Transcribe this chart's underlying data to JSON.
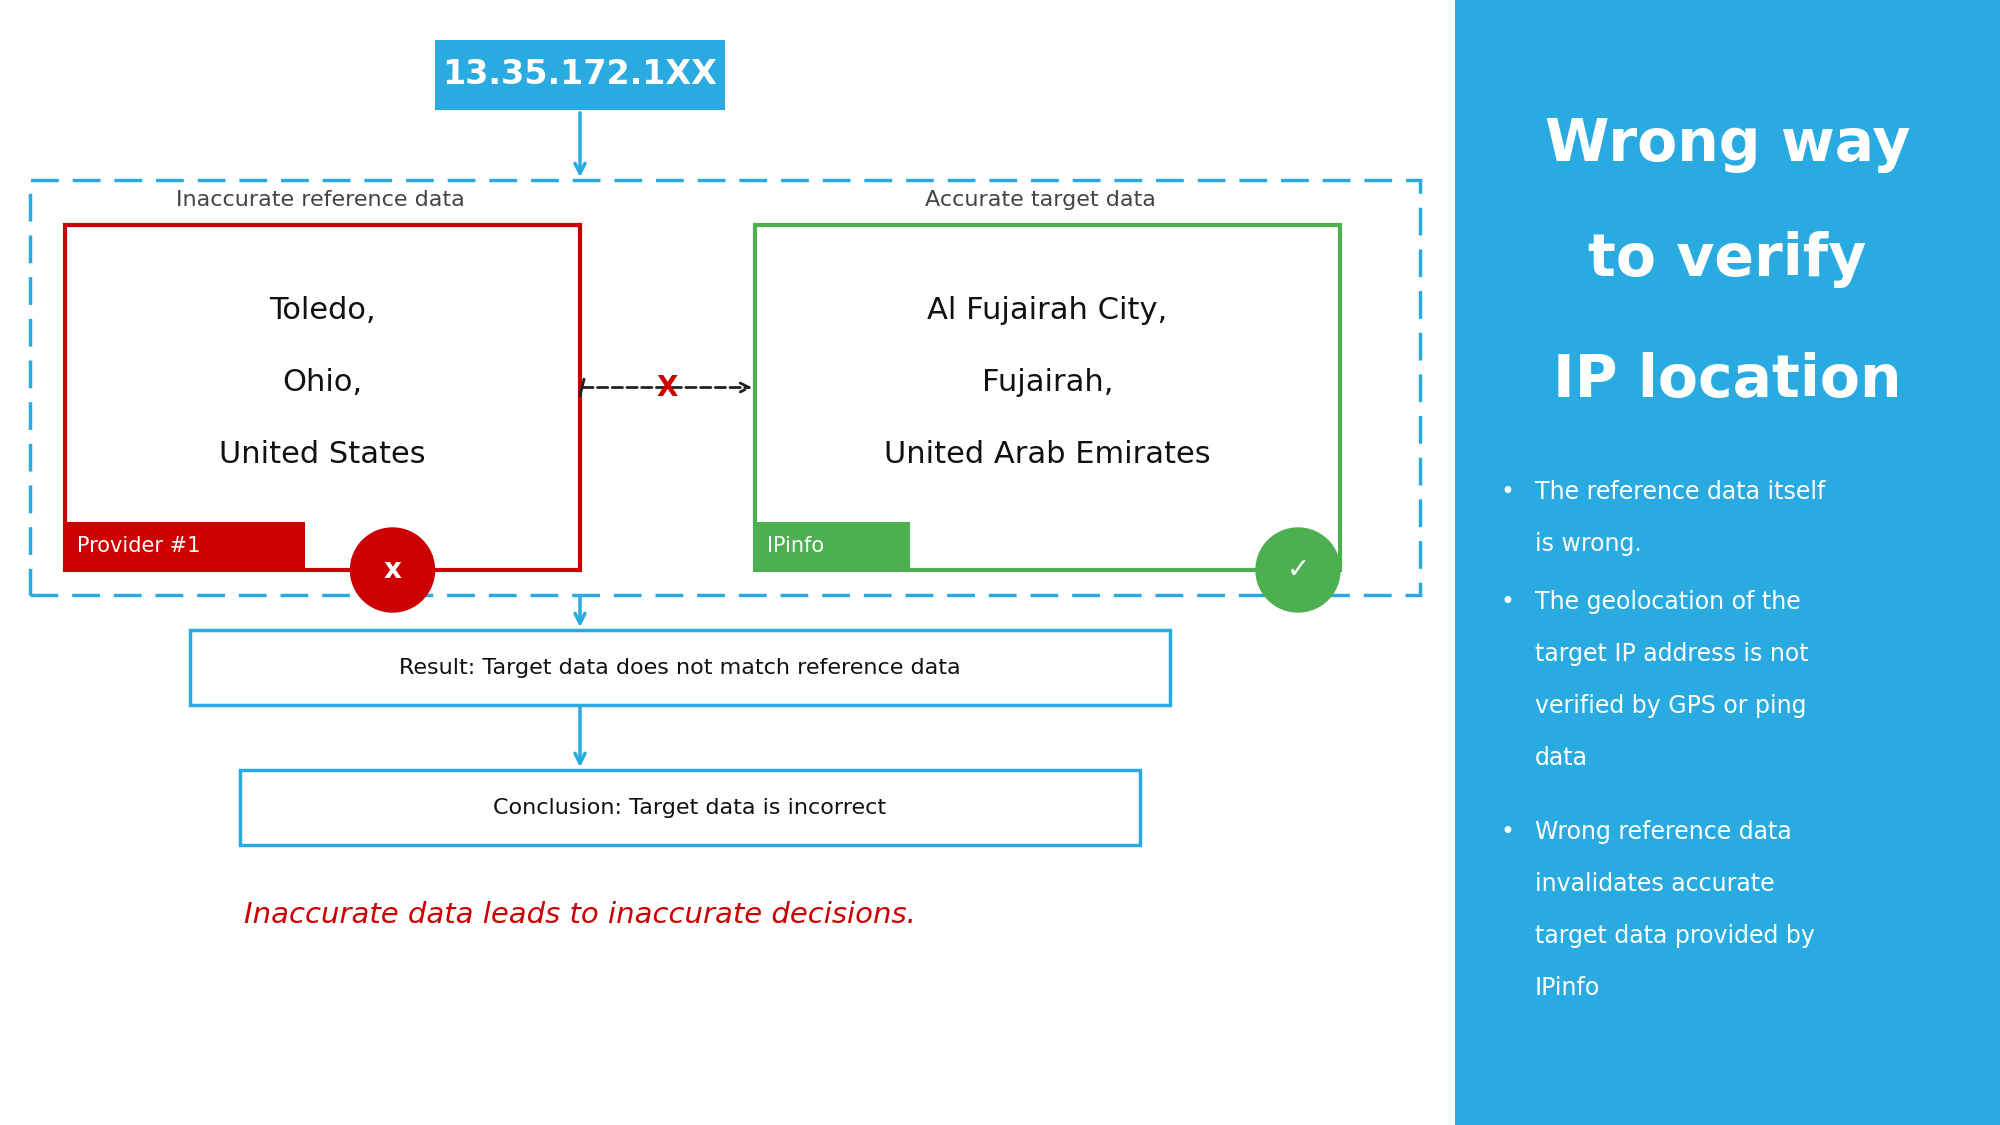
{
  "bg_color": "#ffffff",
  "right_panel_color": "#29ABE2",
  "ip_box_color": "#29ABE2",
  "ip_text": "13.35.172.1XX",
  "red_box_color": "#CC0000",
  "green_box_color": "#4CAF50",
  "blue_arrow_color": "#29ABE2",
  "dashed_outer_color": "#29ABE2",
  "result_box_color": "#29ABE2",
  "left_label": "Inaccurate reference data",
  "right_label": "Accurate target data",
  "left_content_lines": [
    "Toledo,",
    "Ohio,",
    "United States"
  ],
  "right_content_lines": [
    "Al Fujairah City,",
    "Fujairah,",
    "United Arab Emirates"
  ],
  "provider_label": "Provider #1",
  "ipinfo_label": "IPinfo",
  "result_text": "Result: Target data does not match reference data",
  "conclusion_text": "Conclusion: Target data is incorrect",
  "footer_text": "Inaccurate data leads to inaccurate decisions.",
  "footer_color": "#CC0000",
  "title_line1": "Wrong way",
  "title_line2": "to verify",
  "title_line3": "IP location",
  "bullet1_line1": "The reference data itself",
  "bullet1_line2": "is wrong.",
  "bullet2_line1": "The geolocation of the",
  "bullet2_line2": "target IP address is not",
  "bullet2_line3": "verified by GPS or ping",
  "bullet2_line4": "data",
  "bullet3_line1": "Wrong reference data",
  "bullet3_line2": "invalidates accurate",
  "bullet3_line3": "target data provided by",
  "bullet3_line4": "IPinfo"
}
